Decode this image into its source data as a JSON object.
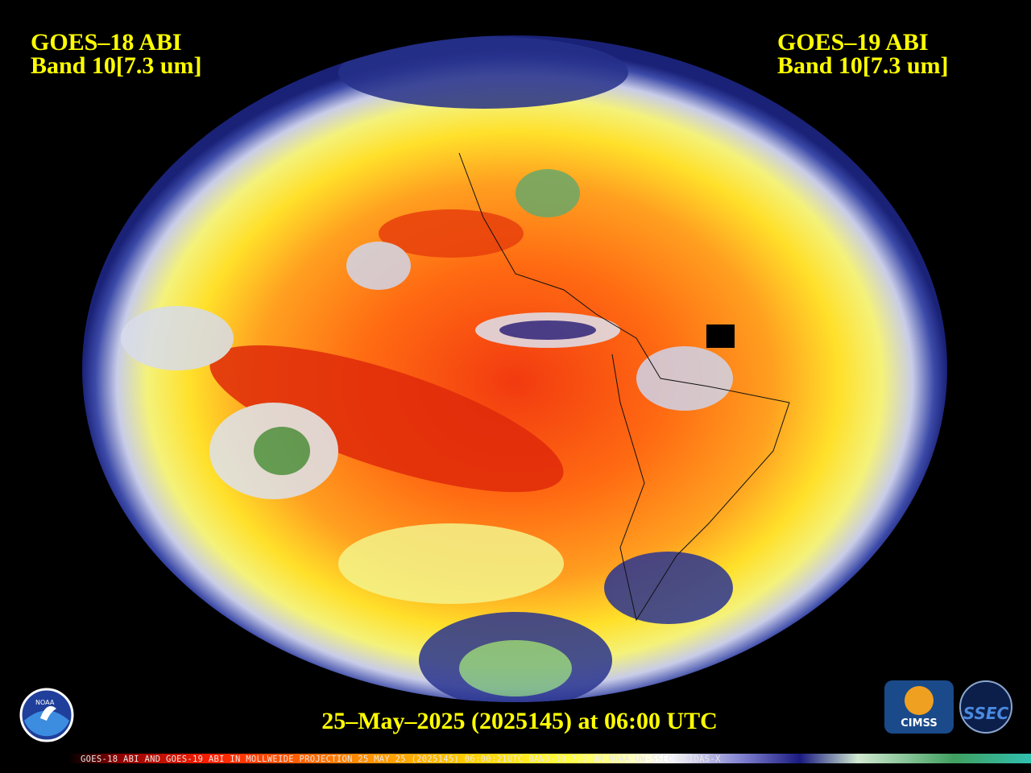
{
  "header": {
    "left": {
      "line1": "GOES–18 ABI",
      "line2": "Band 10[7.3 um]"
    },
    "right": {
      "line1": "GOES–19 ABI",
      "line2": "Band 10[7.3 um]"
    }
  },
  "caption": "25–May–2025 (2025145) at 06:00 UTC",
  "footer": "GOES-18 ABI AND GOES-19 ABI IN MOLLWEIDE PROJECTION 25 MAY 25 (2025145) 06:00:21UTC BAND-10 7.3 UM NOAA UW-SSEC MCIDAS-X",
  "logos": {
    "noaa": "NOAA",
    "cimss": "CIMSS",
    "ssec": "SSEC"
  }
}
